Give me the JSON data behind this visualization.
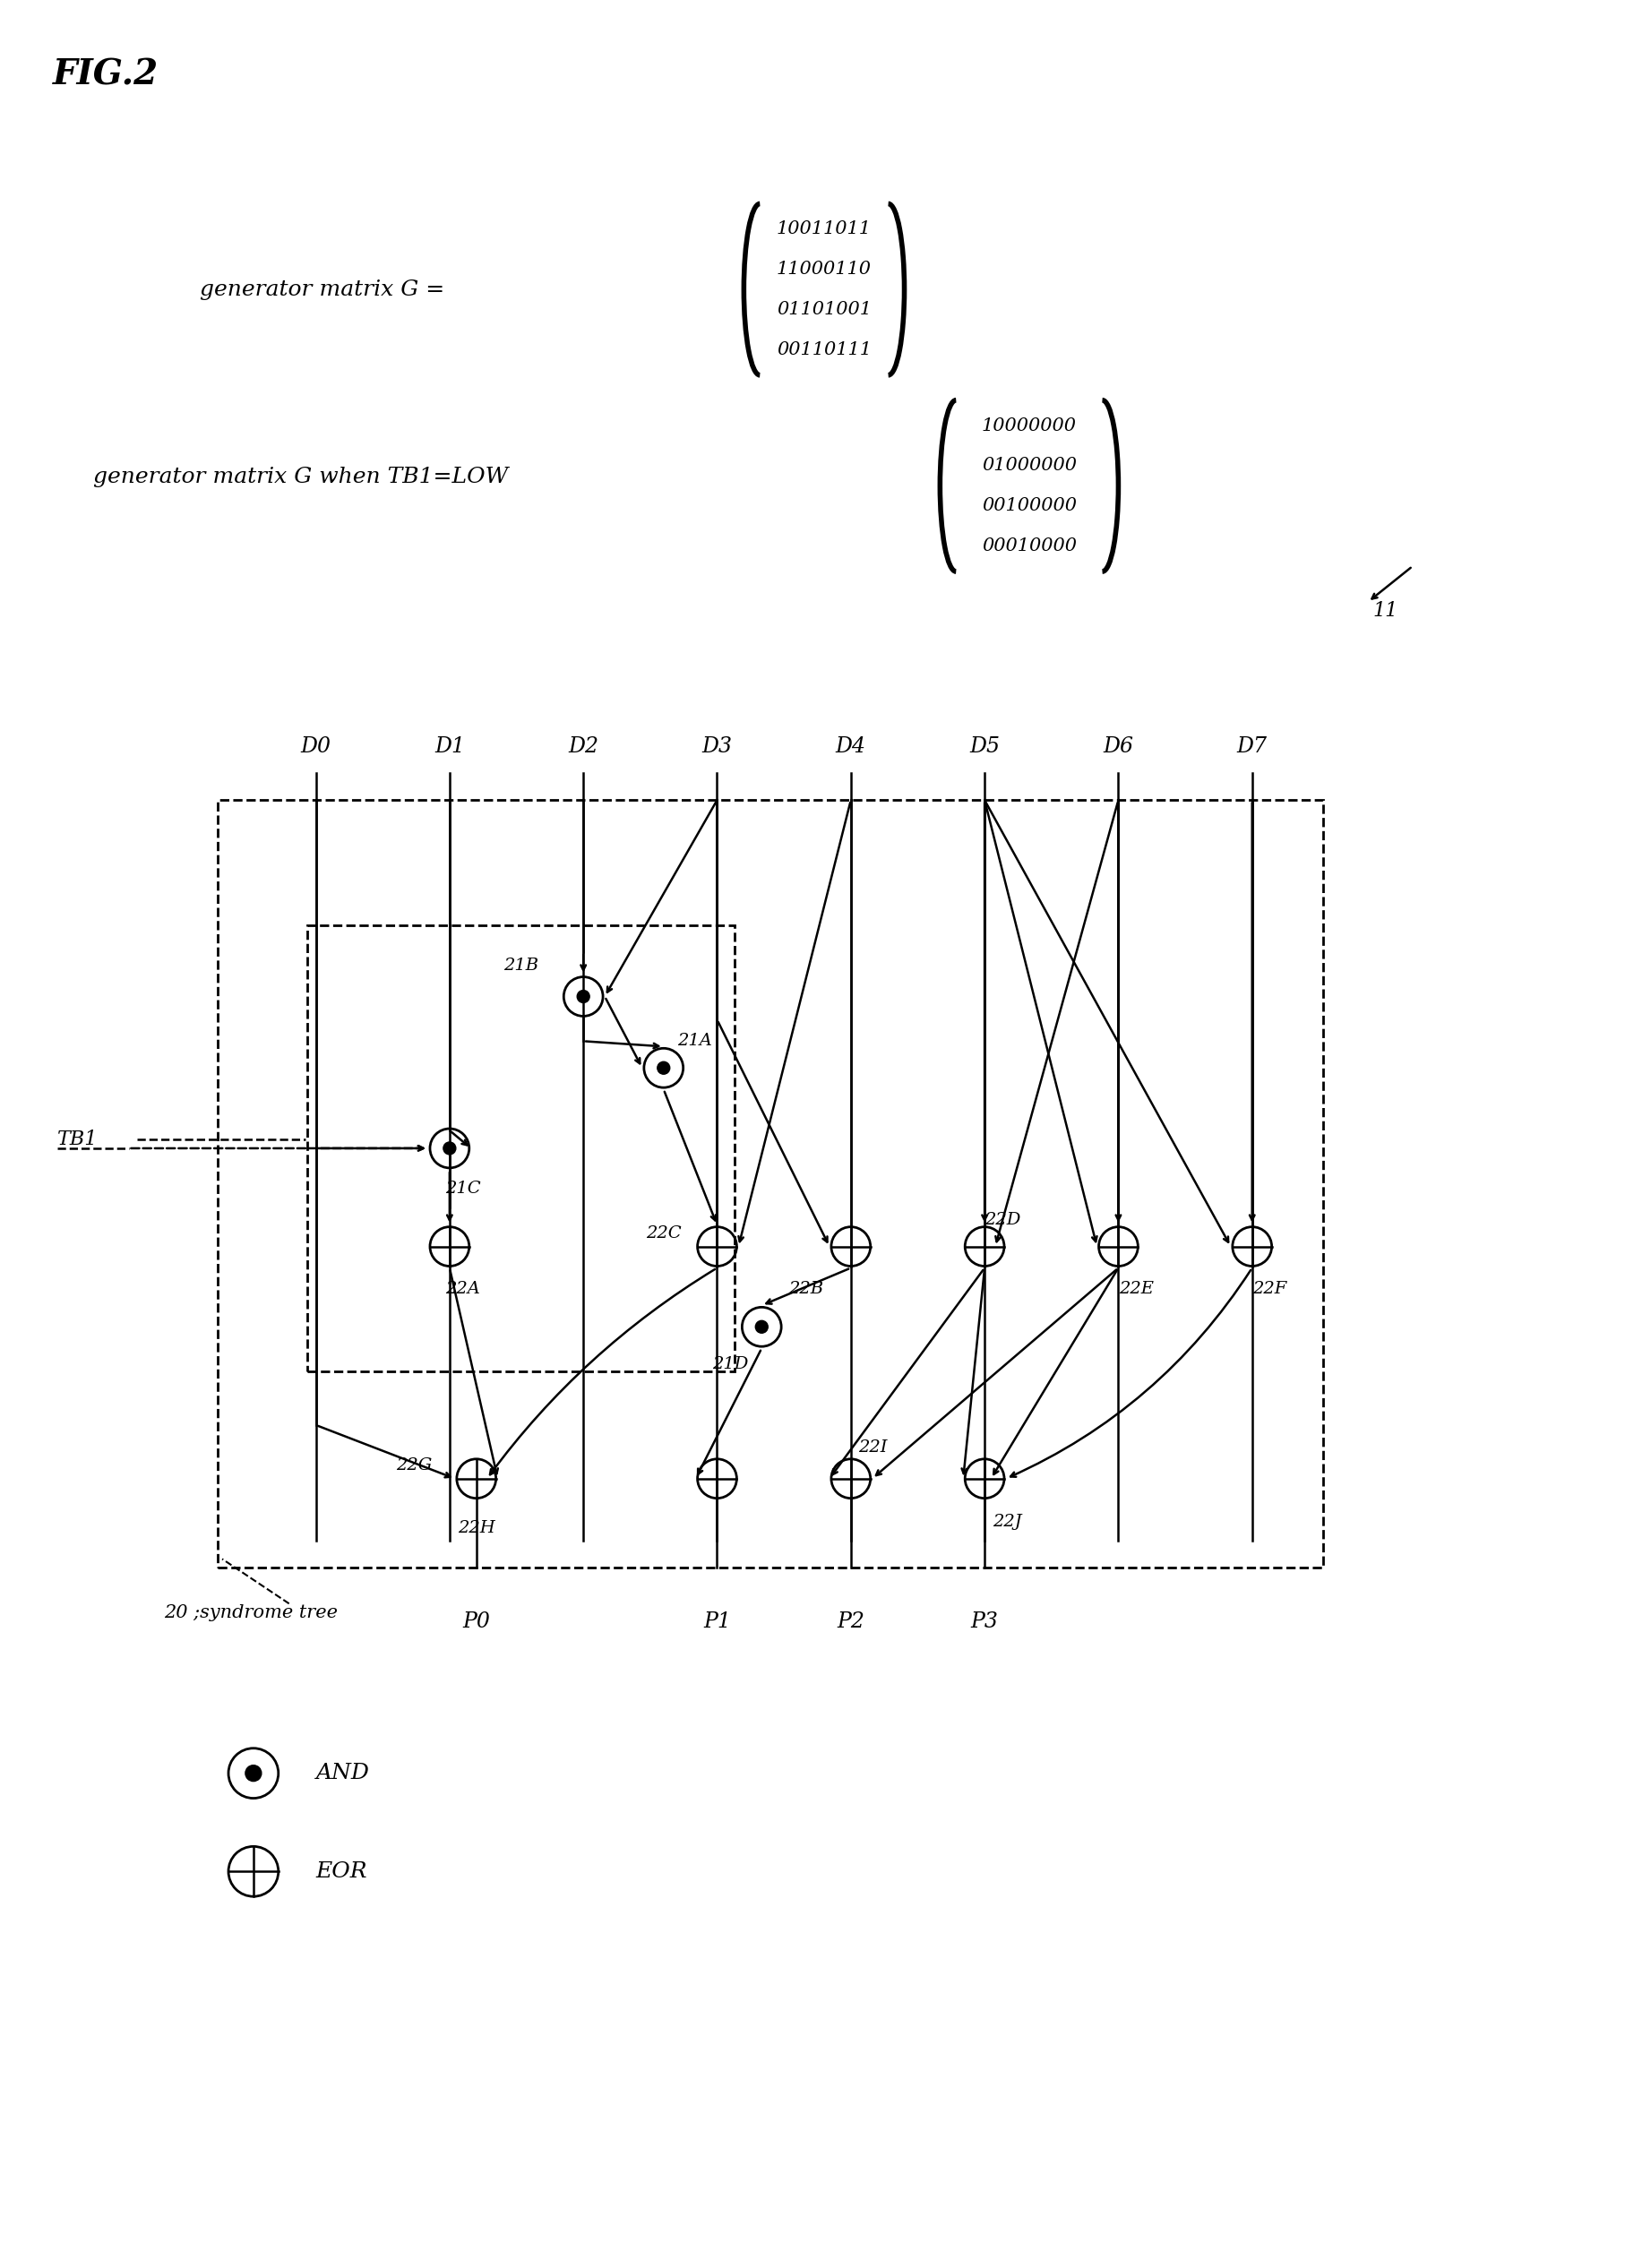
{
  "fig_label": "FIG.2",
  "matrix1_label": "generator matrix G =",
  "matrix1_rows": [
    "10011011",
    "11000110",
    "01101001",
    "00110111"
  ],
  "matrix2_label": "generator matrix G when TB1=LOW",
  "matrix2_rows": [
    "10000000",
    "01000000",
    "00100000",
    "00010000"
  ],
  "label_11": "11",
  "label_20": "20 ;syndrome tree",
  "bg_color": "#ffffff",
  "line_color": "#000000",
  "D_labels": [
    "D0",
    "D1",
    "D2",
    "D3",
    "D4",
    "D5",
    "D6",
    "D7"
  ],
  "P_labels": [
    "P0",
    "P1",
    "P2",
    "P3"
  ],
  "legend_and": "AND",
  "legend_eor": "EOR",
  "fig_width": 18.15,
  "fig_height": 25.32
}
